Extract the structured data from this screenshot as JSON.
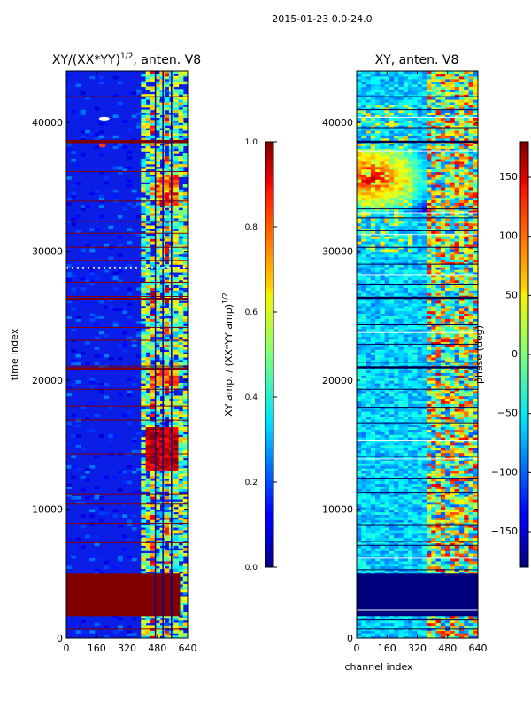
{
  "figure_title": "2015-01-23 0.0-24.0",
  "chart_data": [
    {
      "type": "heatmap",
      "title_main": "XY/(XX*YY)",
      "title_sup": "1/2",
      "title_rest": ", anten. V8",
      "xlabel": "",
      "ylabel": "time index",
      "xlim": [
        0,
        640
      ],
      "ylim": [
        0,
        44000
      ],
      "x_ticks": [
        0,
        160,
        320,
        480,
        640
      ],
      "y_ticks": [
        0,
        10000,
        20000,
        30000,
        40000
      ],
      "colorbar": {
        "label_main": "XY amp. / (XX*YY amp)",
        "label_sup": "1/2",
        "range": [
          0.0,
          1.0
        ],
        "ticks": [
          "0.0",
          "0.2",
          "0.4",
          "0.6",
          "0.8",
          "1.0"
        ],
        "tick_values": [
          0.0,
          0.2,
          0.4,
          0.6,
          0.8,
          1.0
        ],
        "colormap": "jet"
      }
    },
    {
      "type": "heatmap",
      "title_main": "XY, anten. V8",
      "xlabel": "channel index",
      "ylabel": "",
      "xlim": [
        0,
        640
      ],
      "ylim": [
        0,
        44000
      ],
      "x_ticks": [
        0,
        160,
        320,
        480,
        640
      ],
      "y_ticks": [
        0,
        10000,
        20000,
        30000,
        40000
      ],
      "colorbar": {
        "label_main": "phase (deg)",
        "range": [
          -180,
          180
        ],
        "ticks": [
          "−150",
          "−100",
          "−50",
          "0",
          "50",
          "100",
          "150"
        ],
        "tick_values": [
          -150,
          -100,
          -50,
          0,
          50,
          100,
          150
        ],
        "colormap": "jet"
      }
    }
  ],
  "colors": {
    "jet_dark_red": "#800000",
    "jet_dark_blue": "#00007f",
    "axis": "#000000"
  }
}
